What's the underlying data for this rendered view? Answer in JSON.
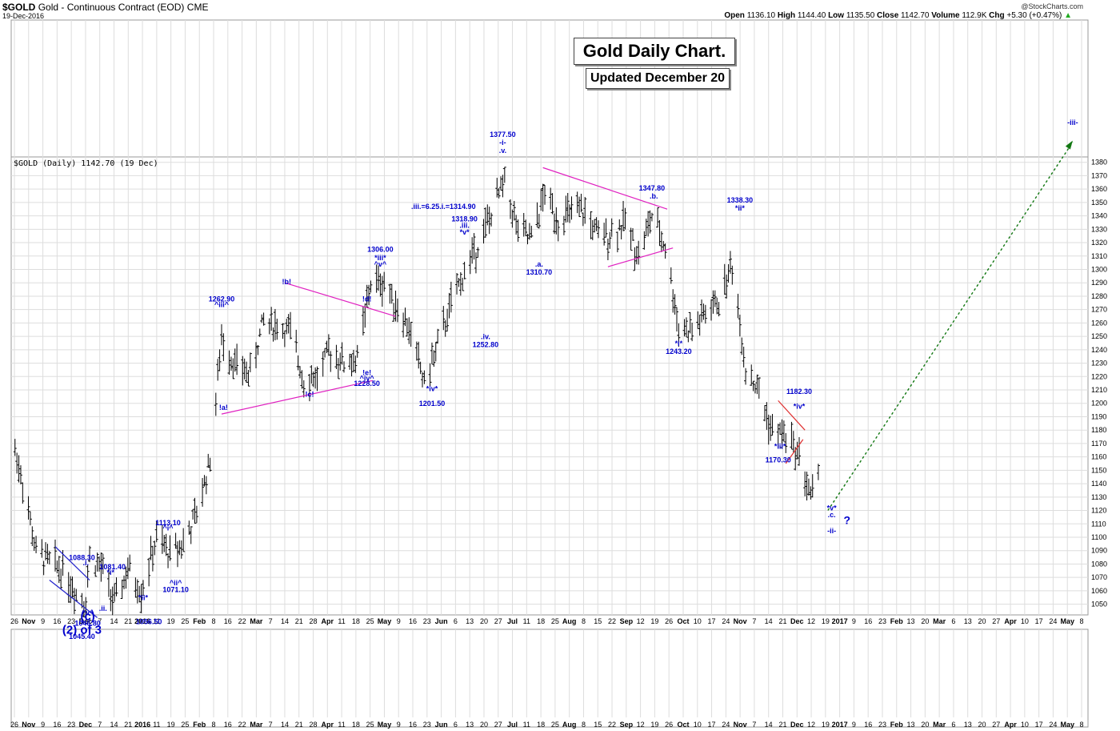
{
  "header": {
    "symbol": "$GOLD",
    "name": "Gold - Continuous Contract (EOD)",
    "exchange": "CME",
    "date": "19-Dec-2016",
    "logo": "@StockCharts.com",
    "open_label": "Open",
    "open": "1136.10",
    "high_label": "High",
    "high": "1144.40",
    "low_label": "Low",
    "low": "1135.50",
    "close_label": "Close",
    "close": "1142.70",
    "volume_label": "Volume",
    "volume": "112.9K",
    "chg_label": "Chg",
    "chg": "+5.30 (+0.47%)",
    "chg_arrow": "▲"
  },
  "legend_text": "$GOLD (Daily) 1142.70 (19 Dec)",
  "title": "Gold Daily Chart.",
  "subtitle": "Updated December 20",
  "colors": {
    "bars": "#000000",
    "labels": "#0000cc",
    "channels": "#e020c0",
    "triangle": "#e03030",
    "wedge": "#2020cc",
    "projection": "#117711",
    "grid": "#dddddd"
  },
  "chart_data": {
    "type": "ohlc",
    "series": "$GOLD Daily",
    "y_ticks": [
      1050,
      1060,
      1070,
      1080,
      1090,
      1100,
      1110,
      1120,
      1130,
      1140,
      1150,
      1160,
      1170,
      1180,
      1190,
      1200,
      1210,
      1220,
      1230,
      1240,
      1250,
      1260,
      1270,
      1280,
      1290,
      1300,
      1310,
      1320,
      1330,
      1340,
      1350,
      1360,
      1370,
      1380
    ],
    "ylim": [
      1042,
      1384
    ],
    "x_ticks": [
      "26",
      "Nov",
      "9",
      "16",
      "23",
      "Dec",
      "7",
      "14",
      "21",
      "2016",
      "11",
      "19",
      "25",
      "Feb",
      "8",
      "16",
      "22",
      "Mar",
      "7",
      "14",
      "21",
      "28",
      "Apr",
      "11",
      "18",
      "25",
      "May",
      "9",
      "16",
      "23",
      "Jun",
      "6",
      "13",
      "20",
      "27",
      "Jul",
      "11",
      "18",
      "25",
      "Aug",
      "8",
      "15",
      "22",
      "Sep",
      "12",
      "19",
      "26",
      "Oct",
      "10",
      "17",
      "24",
      "Nov",
      "7",
      "14",
      "21",
      "Dec",
      "12",
      "19",
      "2017",
      "9",
      "16",
      "23",
      "Feb",
      "13",
      "20",
      "Mar",
      "6",
      "13",
      "20",
      "27",
      "Apr",
      "10",
      "17",
      "24",
      "May",
      "8"
    ],
    "close_path": [
      {
        "d": "2015-10-26",
        "c": 1165
      },
      {
        "d": "2015-10-30",
        "c": 1142
      },
      {
        "d": "2015-11-06",
        "c": 1088
      },
      {
        "d": "2015-11-13",
        "c": 1082
      },
      {
        "d": "2015-11-20",
        "c": 1076
      },
      {
        "d": "2015-11-27",
        "c": 1058
      },
      {
        "d": "2015-12-02",
        "c": 1053
      },
      {
        "d": "2015-12-04",
        "c": 1086
      },
      {
        "d": "2015-12-11",
        "c": 1075
      },
      {
        "d": "2015-12-17",
        "c": 1050
      },
      {
        "d": "2015-12-24",
        "c": 1075
      },
      {
        "d": "2015-12-31",
        "c": 1060
      },
      {
        "d": "2016-01-08",
        "c": 1098
      },
      {
        "d": "2016-01-15",
        "c": 1088
      },
      {
        "d": "2016-01-22",
        "c": 1096
      },
      {
        "d": "2016-01-29",
        "c": 1117
      },
      {
        "d": "2016-02-05",
        "c": 1158
      },
      {
        "d": "2016-02-11",
        "c": 1248
      },
      {
        "d": "2016-02-19",
        "c": 1227
      },
      {
        "d": "2016-02-26",
        "c": 1222
      },
      {
        "d": "2016-03-04",
        "c": 1262
      },
      {
        "d": "2016-03-11",
        "c": 1258
      },
      {
        "d": "2016-03-18",
        "c": 1253
      },
      {
        "d": "2016-03-25",
        "c": 1218
      },
      {
        "d": "2016-04-01",
        "c": 1220
      },
      {
        "d": "2016-04-08",
        "c": 1240
      },
      {
        "d": "2016-04-15",
        "c": 1230
      },
      {
        "d": "2016-04-22",
        "c": 1233
      },
      {
        "d": "2016-04-29",
        "c": 1290
      },
      {
        "d": "2016-05-06",
        "c": 1290
      },
      {
        "d": "2016-05-13",
        "c": 1272
      },
      {
        "d": "2016-05-20",
        "c": 1252
      },
      {
        "d": "2016-05-27",
        "c": 1215
      },
      {
        "d": "2016-06-03",
        "c": 1243
      },
      {
        "d": "2016-06-10",
        "c": 1274
      },
      {
        "d": "2016-06-17",
        "c": 1298
      },
      {
        "d": "2016-06-24",
        "c": 1319
      },
      {
        "d": "2016-07-01",
        "c": 1341
      },
      {
        "d": "2016-07-08",
        "c": 1366
      },
      {
        "d": "2016-07-15",
        "c": 1328
      },
      {
        "d": "2016-07-22",
        "c": 1322
      },
      {
        "d": "2016-07-29",
        "c": 1357
      },
      {
        "d": "2016-08-05",
        "c": 1337
      },
      {
        "d": "2016-08-12",
        "c": 1342
      },
      {
        "d": "2016-08-19",
        "c": 1342
      },
      {
        "d": "2016-08-26",
        "c": 1324
      },
      {
        "d": "2016-09-02",
        "c": 1327
      },
      {
        "d": "2016-09-09",
        "c": 1335
      },
      {
        "d": "2016-09-16",
        "c": 1311
      },
      {
        "d": "2016-09-23",
        "c": 1340
      },
      {
        "d": "2016-09-30",
        "c": 1317
      },
      {
        "d": "2016-10-07",
        "c": 1257
      },
      {
        "d": "2016-10-14",
        "c": 1254
      },
      {
        "d": "2016-10-21",
        "c": 1267
      },
      {
        "d": "2016-10-28",
        "c": 1276
      },
      {
        "d": "2016-11-04",
        "c": 1304
      },
      {
        "d": "2016-11-11",
        "c": 1227
      },
      {
        "d": "2016-11-18",
        "c": 1208
      },
      {
        "d": "2016-11-25",
        "c": 1178
      },
      {
        "d": "2016-12-02",
        "c": 1177
      },
      {
        "d": "2016-12-09",
        "c": 1161
      },
      {
        "d": "2016-12-15",
        "c": 1130
      },
      {
        "d": "2016-12-19",
        "c": 1142.7
      }
    ],
    "annotations": [
      {
        "d": "2015-11-30",
        "y": 1083,
        "t": "1088.30"
      },
      {
        "d": "2015-12-02",
        "y": 1079,
        "t": ".i."
      },
      {
        "d": "2015-12-03",
        "y": 1042,
        "t": "^v^"
      },
      {
        "d": "2015-12-03",
        "y": 1038,
        "t": "(c)"
      },
      {
        "d": "2015-12-03",
        "y": 1034,
        "t": "1046.80"
      },
      {
        "d": "2015-11-30",
        "y": 1028,
        "t": "(2) of 3"
      },
      {
        "d": "2015-11-30",
        "y": 1024,
        "t": "1045.40"
      },
      {
        "d": "2015-12-16",
        "y": 1076,
        "t": "1081.40"
      },
      {
        "d": "2015-12-15",
        "y": 1072,
        "t": "*i*"
      },
      {
        "d": "2015-12-11",
        "y": 1045,
        "t": ".ii."
      },
      {
        "d": "2016-01-04",
        "y": 1035,
        "t": "1056.50"
      },
      {
        "d": "2016-01-01",
        "y": 1053,
        "t": "*ii*"
      },
      {
        "d": "2016-01-14",
        "y": 1109,
        "t": "1113.10"
      },
      {
        "d": "2016-01-14",
        "y": 1105,
        "t": "^i^"
      },
      {
        "d": "2016-01-18",
        "y": 1064,
        "t": "^ii^"
      },
      {
        "d": "2016-01-18",
        "y": 1059,
        "t": "1071.10"
      },
      {
        "d": "2016-02-11",
        "y": 1276,
        "t": "1262.90"
      },
      {
        "d": "2016-02-11",
        "y": 1272,
        "t": "^iii^"
      },
      {
        "d": "2016-02-12",
        "y": 1195,
        "t": "!a!"
      },
      {
        "d": "2016-03-16",
        "y": 1289,
        "t": "!b!"
      },
      {
        "d": "2016-03-28",
        "y": 1205,
        "t": "!c!"
      },
      {
        "d": "2016-04-27",
        "y": 1276,
        "t": "!d!"
      },
      {
        "d": "2016-04-27",
        "y": 1221,
        "t": "!e!"
      },
      {
        "d": "2016-04-27",
        "y": 1217,
        "t": "^iv^"
      },
      {
        "d": "2016-04-27",
        "y": 1213,
        "t": "1228.50"
      },
      {
        "d": "2016-05-04",
        "y": 1313,
        "t": "1306.00"
      },
      {
        "d": "2016-05-04",
        "y": 1307,
        "t": "*iii*"
      },
      {
        "d": "2016-05-04",
        "y": 1302,
        "t": "^v^"
      },
      {
        "d": "2016-05-31",
        "y": 1209,
        "t": "*iv*"
      },
      {
        "d": "2016-05-31",
        "y": 1198,
        "t": "1201.50"
      },
      {
        "d": "2016-06-06",
        "y": 1345,
        "t": ".iii.=6.25.i.=1314.90"
      },
      {
        "d": "2016-06-17",
        "y": 1336,
        "t": "1318.90"
      },
      {
        "d": "2016-06-17",
        "y": 1331,
        "t": ".iii."
      },
      {
        "d": "2016-06-17",
        "y": 1326,
        "t": "*v*"
      },
      {
        "d": "2016-06-28",
        "y": 1248,
        "t": ".iv."
      },
      {
        "d": "2016-06-28",
        "y": 1242,
        "t": "1252.80"
      },
      {
        "d": "2016-07-07",
        "y": 1399,
        "t": "1377.50"
      },
      {
        "d": "2016-07-07",
        "y": 1393,
        "t": "-i-"
      },
      {
        "d": "2016-07-07",
        "y": 1387,
        "t": ".v."
      },
      {
        "d": "2016-07-26",
        "y": 1302,
        "t": ".a."
      },
      {
        "d": "2016-07-26",
        "y": 1296,
        "t": "1310.70"
      },
      {
        "d": "2016-09-23",
        "y": 1359,
        "t": "1347.80"
      },
      {
        "d": "2016-09-24",
        "y": 1353,
        "t": ".b."
      },
      {
        "d": "2016-10-07",
        "y": 1243,
        "t": "*i*"
      },
      {
        "d": "2016-10-07",
        "y": 1237,
        "t": "1243.20"
      },
      {
        "d": "2016-11-08",
        "y": 1350,
        "t": "1338.30"
      },
      {
        "d": "2016-11-08",
        "y": 1344,
        "t": "*ii*"
      },
      {
        "d": "2016-11-29",
        "y": 1166,
        "t": "*iii*"
      },
      {
        "d": "2016-11-28",
        "y": 1156,
        "t": "1170.30"
      },
      {
        "d": "2016-12-09",
        "y": 1207,
        "t": "1182.30"
      },
      {
        "d": "2016-12-09",
        "y": 1196,
        "t": "*iv*"
      },
      {
        "d": "2016-12-26",
        "y": 1120,
        "t": "*v*"
      },
      {
        "d": "2016-12-26",
        "y": 1115,
        "t": ".c."
      },
      {
        "d": "2016-12-26",
        "y": 1103,
        "t": "-ii-"
      },
      {
        "d": "2017-01-03",
        "y": 1110,
        "t": "?"
      },
      {
        "d": "2017-05-01",
        "y": 1408,
        "t": "-iii-"
      }
    ]
  }
}
